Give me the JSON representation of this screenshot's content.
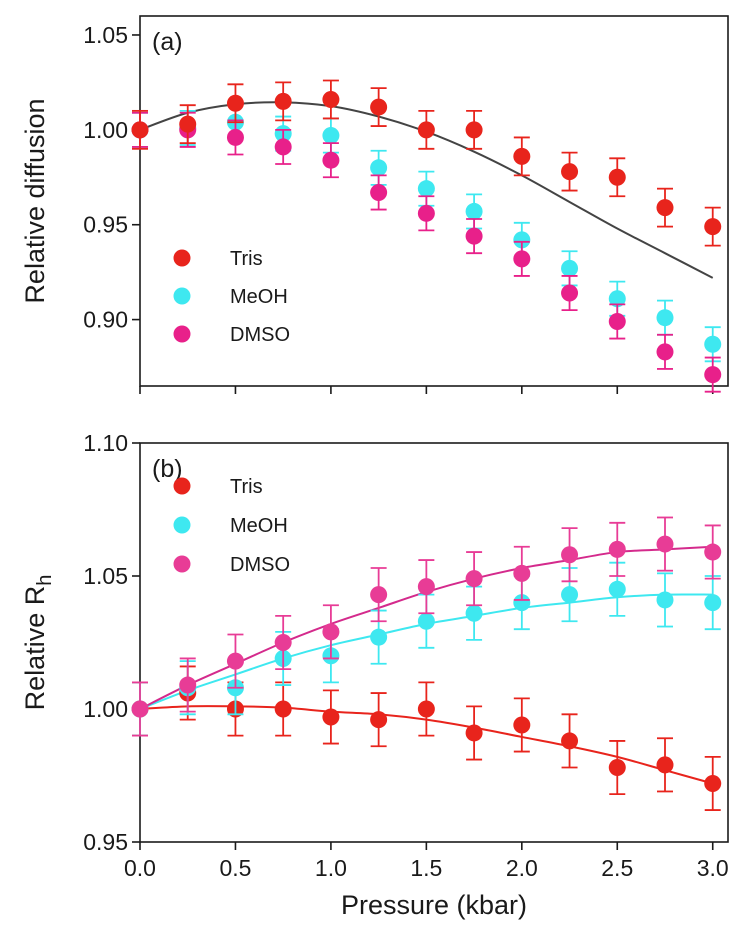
{
  "chart_data": [
    {
      "type": "scatter",
      "panel_label": "(a)",
      "ylabel": "Relative diffusion",
      "xlabel": "",
      "xlim": [
        0.0,
        3.08
      ],
      "ylim": [
        0.865,
        1.06
      ],
      "xticks": [
        "0.0",
        "0.5",
        "1.0",
        "1.5",
        "2.0",
        "2.5",
        "3.0"
      ],
      "yticks": [
        "0.90",
        "0.95",
        "1.00",
        "1.05"
      ],
      "x": [
        0,
        0.25,
        0.5,
        0.75,
        1.0,
        1.25,
        1.5,
        1.75,
        2.0,
        2.25,
        2.5,
        2.75,
        3.0
      ],
      "series": [
        {
          "name": "Tris",
          "color": "#e8241c",
          "y": [
            1.0,
            1.003,
            1.014,
            1.015,
            1.016,
            1.012,
            1.0,
            1.0,
            0.986,
            0.978,
            0.975,
            0.959,
            0.949
          ],
          "error": 0.01
        },
        {
          "name": "MeOH",
          "color": "#3ee8f0",
          "y": [
            1.0,
            1.001,
            1.004,
            0.998,
            0.997,
            0.98,
            0.969,
            0.957,
            0.942,
            0.927,
            0.911,
            0.901,
            0.887
          ],
          "error": 0.009
        },
        {
          "name": "DMSO",
          "color": "#e8208a",
          "y": [
            1.0,
            1.0,
            0.996,
            0.991,
            0.984,
            0.967,
            0.956,
            0.944,
            0.932,
            0.914,
            0.899,
            0.883,
            0.871
          ],
          "error": 0.009
        }
      ],
      "fit_curves": [
        {
          "color": "#444444",
          "x": [
            0,
            0.25,
            0.5,
            0.75,
            1.0,
            1.25,
            1.5,
            1.75,
            2.0,
            2.25,
            2.5,
            2.75,
            3.0
          ],
          "y": [
            1.0,
            1.009,
            1.0135,
            1.0145,
            1.0125,
            1.007,
            0.999,
            0.9885,
            0.976,
            0.962,
            0.948,
            0.935,
            0.922
          ]
        }
      ],
      "legend_position": "bottom-left",
      "grid": false
    },
    {
      "type": "scatter",
      "panel_label": "(b)",
      "ylabel_main": "Relative R",
      "ylabel_sub": "h",
      "xlabel": "Pressure (kbar)",
      "xlim": [
        0.0,
        3.08
      ],
      "ylim": [
        0.95,
        1.1
      ],
      "xticks": [
        "0.0",
        "0.5",
        "1.0",
        "1.5",
        "2.0",
        "2.5",
        "3.0"
      ],
      "yticks": [
        "0.95",
        "1.00",
        "1.05",
        "1.10"
      ],
      "x": [
        0,
        0.25,
        0.5,
        0.75,
        1.0,
        1.25,
        1.5,
        1.75,
        2.0,
        2.25,
        2.5,
        2.75,
        3.0
      ],
      "series": [
        {
          "name": "Tris",
          "color": "#e8241c",
          "y": [
            1.0,
            1.006,
            1.0,
            1.0,
            0.997,
            0.996,
            1.0,
            0.991,
            0.994,
            0.988,
            0.978,
            0.979,
            0.972
          ],
          "error": 0.01
        },
        {
          "name": "MeOH",
          "color": "#3ee8f0",
          "y": [
            1.0,
            1.008,
            1.008,
            1.019,
            1.02,
            1.027,
            1.033,
            1.036,
            1.04,
            1.043,
            1.045,
            1.041,
            1.04
          ],
          "error": 0.01
        },
        {
          "name": "DMSO",
          "color": "#e83c96",
          "y": [
            1.0,
            1.009,
            1.018,
            1.025,
            1.029,
            1.043,
            1.046,
            1.049,
            1.051,
            1.058,
            1.06,
            1.062,
            1.059
          ],
          "error": 0.01
        }
      ],
      "fit_curves": [
        {
          "color": "#e8241c",
          "x": [
            0,
            0.25,
            0.5,
            0.75,
            1.0,
            1.25,
            1.5,
            1.75,
            2.0,
            2.25,
            2.5,
            2.75,
            3.0
          ],
          "y": [
            1.0,
            1.001,
            1.001,
            1.0005,
            0.999,
            0.998,
            0.996,
            0.993,
            0.9895,
            0.986,
            0.982,
            0.977,
            0.972
          ]
        },
        {
          "color": "#3ee8f0",
          "x": [
            0,
            0.25,
            0.5,
            0.75,
            1.0,
            1.25,
            1.5,
            1.75,
            2.0,
            2.25,
            2.5,
            2.75,
            3.0
          ],
          "y": [
            1.0,
            1.007,
            1.013,
            1.019,
            1.024,
            1.028,
            1.032,
            1.035,
            1.038,
            1.04,
            1.042,
            1.043,
            1.043
          ]
        },
        {
          "color": "#d42a8c",
          "x": [
            0,
            0.25,
            0.5,
            0.75,
            1.0,
            1.25,
            1.5,
            1.75,
            2.0,
            2.25,
            2.5,
            2.75,
            3.0
          ],
          "y": [
            1.0,
            1.009,
            1.017,
            1.025,
            1.032,
            1.038,
            1.044,
            1.049,
            1.053,
            1.056,
            1.059,
            1.06,
            1.061
          ]
        }
      ],
      "legend_position": "top-left",
      "grid": false
    }
  ]
}
